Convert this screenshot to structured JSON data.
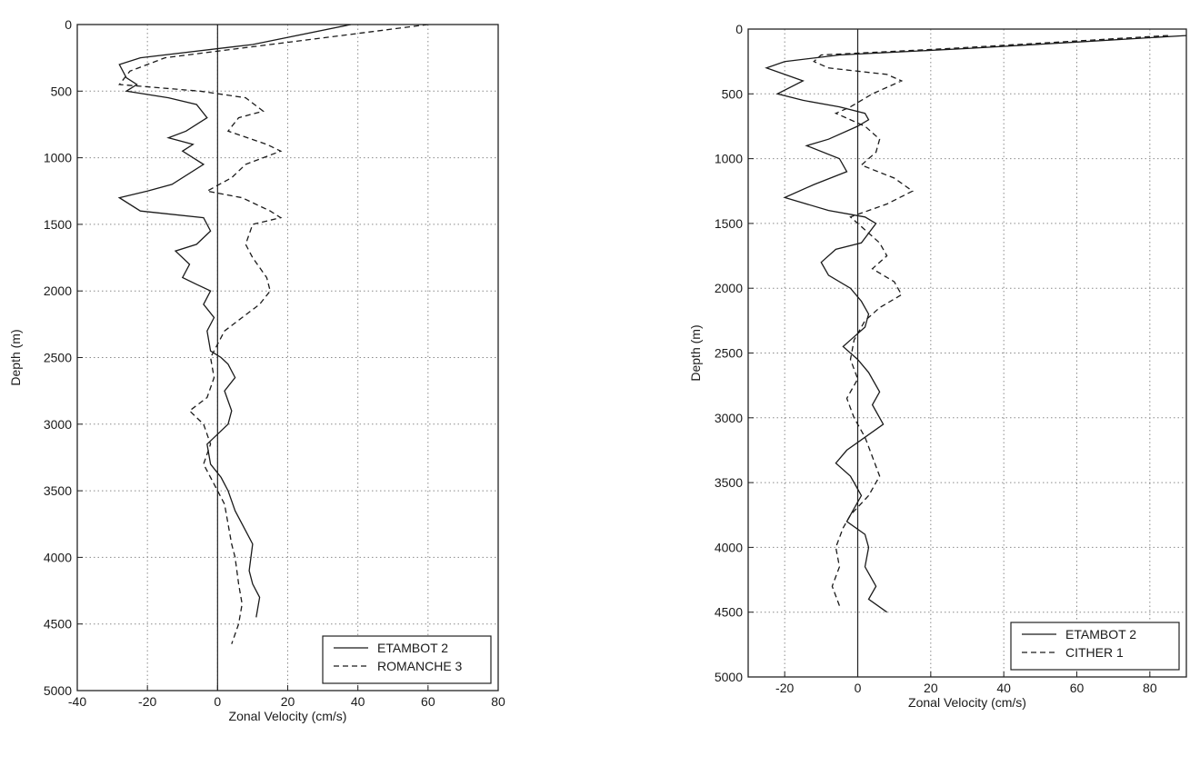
{
  "chart_data": [
    {
      "type": "line",
      "xlabel": "Zonal Velocity (cm/s)",
      "ylabel": "Depth (m)",
      "xlim": [
        -40,
        80
      ],
      "ylim": [
        5000,
        0
      ],
      "y_inverted": true,
      "xticks": [
        "-40",
        "-20",
        "0",
        "20",
        "40",
        "60",
        "80"
      ],
      "yticks": [
        "0",
        "500",
        "1000",
        "1500",
        "2000",
        "2500",
        "3000",
        "3500",
        "4000",
        "4500",
        "5000"
      ],
      "grid": true,
      "legend_position": "bottom-right",
      "series": [
        {
          "name": "ETAMBOT 2",
          "style": "solid",
          "points": [
            [
              38,
              0
            ],
            [
              10,
              150
            ],
            [
              -22,
              250
            ],
            [
              -28,
              300
            ],
            [
              -26,
              400
            ],
            [
              -23,
              450
            ],
            [
              -26,
              500
            ],
            [
              -14,
              550
            ],
            [
              -6,
              600
            ],
            [
              -3,
              700
            ],
            [
              -9,
              800
            ],
            [
              -14,
              850
            ],
            [
              -7,
              900
            ],
            [
              -10,
              950
            ],
            [
              -4,
              1050
            ],
            [
              -13,
              1200
            ],
            [
              -20,
              1250
            ],
            [
              -28,
              1300
            ],
            [
              -22,
              1400
            ],
            [
              -4,
              1450
            ],
            [
              -2,
              1550
            ],
            [
              -6,
              1650
            ],
            [
              -12,
              1700
            ],
            [
              -8,
              1800
            ],
            [
              -10,
              1900
            ],
            [
              -6,
              1950
            ],
            [
              -2,
              2000
            ],
            [
              -4,
              2100
            ],
            [
              -1,
              2200
            ],
            [
              -3,
              2300
            ],
            [
              -2,
              2450
            ],
            [
              1,
              2500
            ],
            [
              3,
              2550
            ],
            [
              5,
              2650
            ],
            [
              2,
              2750
            ],
            [
              4,
              2900
            ],
            [
              3,
              3000
            ],
            [
              -3,
              3150
            ],
            [
              -2,
              3300
            ],
            [
              1,
              3400
            ],
            [
              3,
              3500
            ],
            [
              5,
              3650
            ],
            [
              8,
              3800
            ],
            [
              10,
              3900
            ],
            [
              9,
              4100
            ],
            [
              10,
              4200
            ],
            [
              12,
              4300
            ],
            [
              11,
              4450
            ]
          ]
        },
        {
          "name": "ROMANCHE 3",
          "style": "dashed",
          "points": [
            [
              60,
              0
            ],
            [
              30,
              100
            ],
            [
              0,
              200
            ],
            [
              -15,
              250
            ],
            [
              -25,
              350
            ],
            [
              -28,
              450
            ],
            [
              -5,
              500
            ],
            [
              8,
              550
            ],
            [
              13,
              650
            ],
            [
              6,
              700
            ],
            [
              3,
              800
            ],
            [
              14,
              900
            ],
            [
              18,
              950
            ],
            [
              8,
              1050
            ],
            [
              4,
              1150
            ],
            [
              -3,
              1250
            ],
            [
              7,
              1300
            ],
            [
              15,
              1400
            ],
            [
              18,
              1450
            ],
            [
              10,
              1500
            ],
            [
              8,
              1650
            ],
            [
              10,
              1750
            ],
            [
              14,
              1900
            ],
            [
              15,
              2000
            ],
            [
              12,
              2100
            ],
            [
              7,
              2200
            ],
            [
              2,
              2300
            ],
            [
              -2,
              2500
            ],
            [
              -1,
              2650
            ],
            [
              -3,
              2800
            ],
            [
              -8,
              2900
            ],
            [
              -4,
              3000
            ],
            [
              -2,
              3150
            ],
            [
              -4,
              3300
            ],
            [
              -1,
              3450
            ],
            [
              2,
              3600
            ],
            [
              3,
              3750
            ],
            [
              4,
              3900
            ],
            [
              5,
              4000
            ],
            [
              6,
              4200
            ],
            [
              7,
              4350
            ],
            [
              6,
              4500
            ],
            [
              4,
              4650
            ]
          ]
        }
      ]
    },
    {
      "type": "line",
      "xlabel": "Zonal Velocity (cm/s)",
      "ylabel": "Depth (m)",
      "xlim": [
        -30,
        90
      ],
      "ylim": [
        5000,
        0
      ],
      "y_inverted": true,
      "xticks": [
        "-20",
        "0",
        "20",
        "40",
        "60",
        "80"
      ],
      "yticks": [
        "0",
        "500",
        "1000",
        "1500",
        "2000",
        "2500",
        "3000",
        "3500",
        "4000",
        "4500",
        "5000"
      ],
      "grid": true,
      "legend_position": "bottom-right",
      "series": [
        {
          "name": "ETAMBOT 2",
          "style": "solid",
          "points": [
            [
              90,
              50
            ],
            [
              60,
              100
            ],
            [
              30,
              150
            ],
            [
              -5,
              200
            ],
            [
              -20,
              250
            ],
            [
              -25,
              300
            ],
            [
              -15,
              400
            ],
            [
              -22,
              500
            ],
            [
              -15,
              550
            ],
            [
              -5,
              600
            ],
            [
              2,
              650
            ],
            [
              3,
              700
            ],
            [
              0,
              750
            ],
            [
              -8,
              850
            ],
            [
              -14,
              900
            ],
            [
              -5,
              1000
            ],
            [
              -3,
              1100
            ],
            [
              -12,
              1200
            ],
            [
              -20,
              1300
            ],
            [
              -8,
              1400
            ],
            [
              2,
              1450
            ],
            [
              5,
              1500
            ],
            [
              1,
              1650
            ],
            [
              -6,
              1700
            ],
            [
              -10,
              1800
            ],
            [
              -8,
              1900
            ],
            [
              -2,
              2000
            ],
            [
              1,
              2100
            ],
            [
              3,
              2200
            ],
            [
              2,
              2300
            ],
            [
              -2,
              2400
            ],
            [
              -4,
              2450
            ],
            [
              0,
              2550
            ],
            [
              3,
              2650
            ],
            [
              6,
              2800
            ],
            [
              4,
              2900
            ],
            [
              7,
              3050
            ],
            [
              2,
              3150
            ],
            [
              -3,
              3250
            ],
            [
              -6,
              3350
            ],
            [
              -2,
              3450
            ],
            [
              1,
              3600
            ],
            [
              -1,
              3700
            ],
            [
              -3,
              3800
            ],
            [
              2,
              3900
            ],
            [
              3,
              4000
            ],
            [
              2,
              4150
            ],
            [
              5,
              4300
            ],
            [
              3,
              4400
            ],
            [
              8,
              4500
            ]
          ]
        },
        {
          "name": "CITHER 1",
          "style": "dashed",
          "points": [
            [
              85,
              50
            ],
            [
              55,
              100
            ],
            [
              25,
              150
            ],
            [
              -10,
              200
            ],
            [
              -12,
              250
            ],
            [
              -8,
              300
            ],
            [
              8,
              350
            ],
            [
              12,
              400
            ],
            [
              4,
              500
            ],
            [
              -2,
              600
            ],
            [
              -6,
              650
            ],
            [
              2,
              750
            ],
            [
              6,
              850
            ],
            [
              5,
              950
            ],
            [
              1,
              1050
            ],
            [
              10,
              1150
            ],
            [
              15,
              1250
            ],
            [
              8,
              1350
            ],
            [
              -2,
              1450
            ],
            [
              2,
              1550
            ],
            [
              6,
              1650
            ],
            [
              8,
              1750
            ],
            [
              4,
              1850
            ],
            [
              10,
              1950
            ],
            [
              12,
              2050
            ],
            [
              6,
              2150
            ],
            [
              2,
              2250
            ],
            [
              -1,
              2400
            ],
            [
              -2,
              2550
            ],
            [
              0,
              2700
            ],
            [
              -3,
              2850
            ],
            [
              -1,
              3000
            ],
            [
              2,
              3150
            ],
            [
              4,
              3300
            ],
            [
              6,
              3450
            ],
            [
              3,
              3600
            ],
            [
              -2,
              3750
            ],
            [
              -4,
              3850
            ],
            [
              -6,
              4000
            ],
            [
              -5,
              4150
            ],
            [
              -7,
              4300
            ],
            [
              -5,
              4450
            ]
          ]
        }
      ]
    }
  ]
}
